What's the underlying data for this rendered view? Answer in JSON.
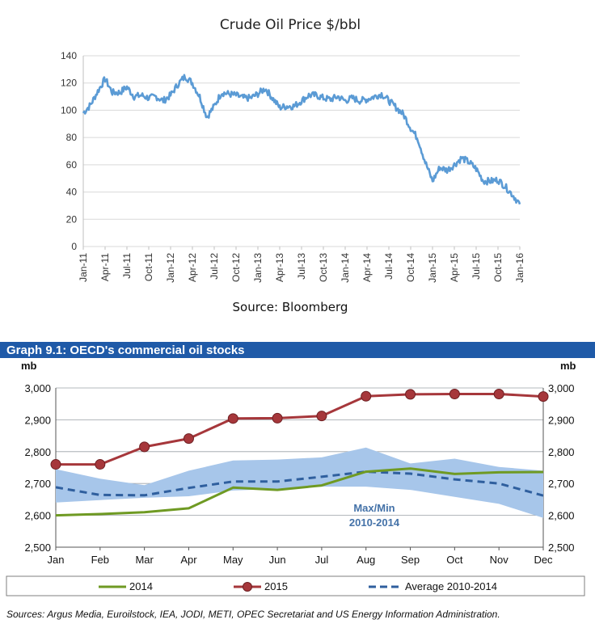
{
  "chart_data": [
    {
      "type": "line",
      "title": "Crude Oil Price $/bbl",
      "source": "Source: Bloomberg",
      "ylim": [
        0,
        140
      ],
      "y_ticks": [
        "0",
        "20",
        "40",
        "60",
        "80",
        "100",
        "120",
        "140"
      ],
      "x_tick_labels": [
        "Jan-11",
        "Apr-11",
        "Jul-11",
        "Oct-11",
        "Jan-12",
        "Apr-12",
        "Jul-12",
        "Oct-12",
        "Jan-13",
        "Apr-13",
        "Jul-13",
        "Oct-13",
        "Jan-14",
        "Apr-14",
        "Jul-14",
        "Oct-14",
        "Jan-15",
        "Apr-15",
        "Jul-15",
        "Oct-15",
        "Jan-16"
      ],
      "grid": true,
      "color": "#5b9bd5",
      "series": [
        {
          "x": [
            "2011-01",
            "2011-02",
            "2011-03",
            "2011-04",
            "2011-05",
            "2011-06",
            "2011-07",
            "2011-08",
            "2011-09",
            "2011-10",
            "2011-11",
            "2011-12",
            "2012-01",
            "2012-02",
            "2012-03",
            "2012-04",
            "2012-05",
            "2012-06",
            "2012-07",
            "2012-08",
            "2012-09",
            "2012-10",
            "2012-11",
            "2012-12",
            "2013-01",
            "2013-02",
            "2013-03",
            "2013-04",
            "2013-05",
            "2013-06",
            "2013-07",
            "2013-08",
            "2013-09",
            "2013-10",
            "2013-11",
            "2013-12",
            "2014-01",
            "2014-02",
            "2014-03",
            "2014-04",
            "2014-05",
            "2014-06",
            "2014-07",
            "2014-08",
            "2014-09",
            "2014-10",
            "2014-11",
            "2014-12",
            "2015-01",
            "2015-02",
            "2015-03",
            "2015-04",
            "2015-05",
            "2015-06",
            "2015-07",
            "2015-08",
            "2015-09",
            "2015-10",
            "2015-11",
            "2015-12",
            "2016-01"
          ],
          "values": [
            98,
            104,
            114,
            123,
            113,
            113,
            117,
            110,
            111,
            109,
            110,
            107,
            111,
            119,
            125,
            120,
            110,
            95,
            103,
            113,
            112,
            111,
            109,
            109,
            112,
            116,
            109,
            102,
            103,
            103,
            107,
            111,
            111,
            109,
            108,
            110,
            107,
            109,
            107,
            108,
            110,
            112,
            107,
            102,
            97,
            87,
            79,
            62,
            48,
            58,
            56,
            60,
            65,
            62,
            57,
            48,
            48,
            49,
            44,
            38,
            31
          ]
        }
      ]
    },
    {
      "type": "line",
      "title": "Graph 9.1: OECD's commercial oil stocks",
      "source": "Sources: Argus Media, Euroilstock, IEA, JODI, METI, OPEC Secretariat and US Energy Information Administration.",
      "y_unit_left": "mb",
      "y_unit_right": "mb",
      "ylim": [
        2500,
        3000
      ],
      "y_ticks": [
        "2,500",
        "2,600",
        "2,700",
        "2,800",
        "2,900",
        "3,000"
      ],
      "categories": [
        "Jan",
        "Feb",
        "Mar",
        "Apr",
        "May",
        "Jun",
        "Jul",
        "Aug",
        "Sep",
        "Oct",
        "Nov",
        "Dec"
      ],
      "grid": true,
      "legend_position": "bottom",
      "band": {
        "label_line1": "Max/Min",
        "label_line2": "2010-2014",
        "color": "#a7c6ea",
        "max": [
          2745,
          2715,
          2695,
          2740,
          2772,
          2775,
          2782,
          2813,
          2763,
          2778,
          2752,
          2740
        ],
        "min": [
          2640,
          2648,
          2655,
          2660,
          2678,
          2683,
          2690,
          2690,
          2680,
          2658,
          2636,
          2592
        ]
      },
      "series": [
        {
          "name": "2014",
          "color": "#6f9a23",
          "style": "solid",
          "markers": false,
          "values": [
            2600,
            2604,
            2610,
            2622,
            2687,
            2680,
            2694,
            2737,
            2747,
            2730,
            2735,
            2736
          ]
        },
        {
          "name": "2015",
          "color": "#a6373b",
          "style": "solid",
          "markers": true,
          "values": [
            2760,
            2760,
            2815,
            2841,
            2904,
            2905,
            2912,
            2974,
            2980,
            2981,
            2981,
            2973
          ]
        },
        {
          "name": "Average 2010-2014",
          "color": "#2f5f9e",
          "style": "dashed",
          "markers": false,
          "values": [
            2688,
            2664,
            2663,
            2686,
            2706,
            2706,
            2721,
            2737,
            2731,
            2713,
            2700,
            2662
          ]
        }
      ]
    }
  ],
  "colors": {
    "banner_bg": "#1f5aa8",
    "grid1": "#d9d9d9",
    "grid2": "#9aa0a6"
  }
}
